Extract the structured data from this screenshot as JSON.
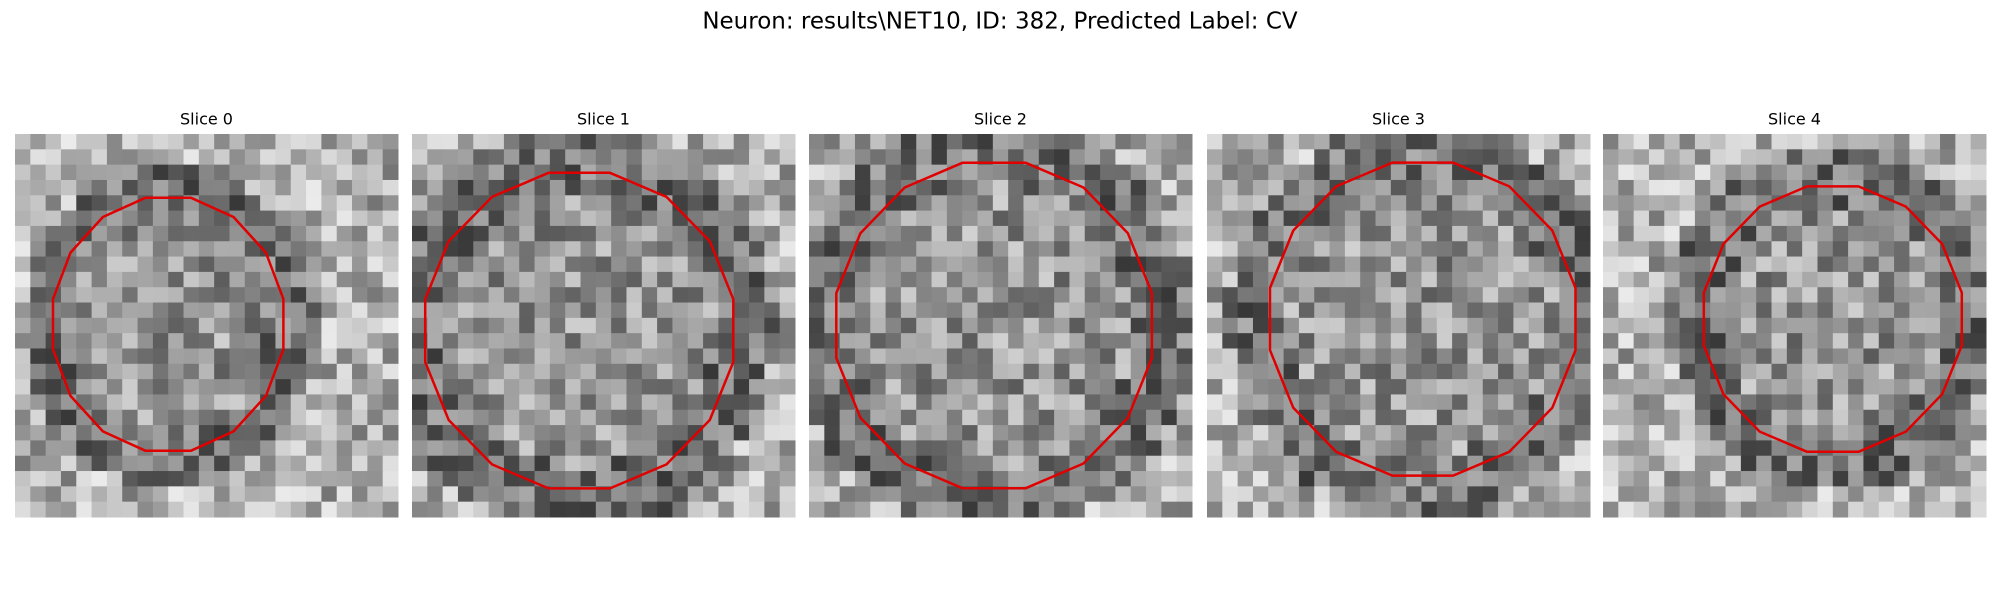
{
  "figure": {
    "title": "Neuron: results\\NET10, ID: 382, Predicted Label: CV",
    "panels": [
      {
        "title": "Slice 0"
      },
      {
        "title": "Slice 1"
      },
      {
        "title": "Slice 2"
      },
      {
        "title": "Slice 3"
      },
      {
        "title": "Slice 4"
      }
    ]
  }
}
